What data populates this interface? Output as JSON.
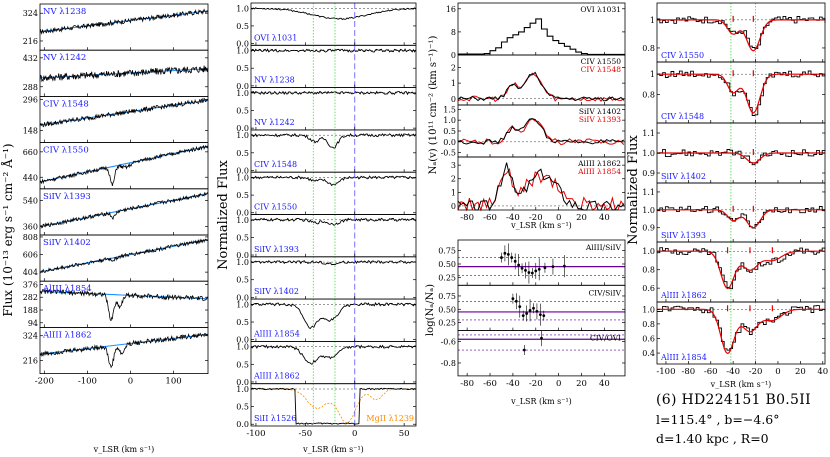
{
  "chart_data": [
    {
      "id": "flux",
      "type": "line",
      "ylabel": "Flux (10⁻¹³ erg s⁻¹ cm⁻² Å⁻¹)",
      "xlabel": "v_LSR (km s⁻¹)",
      "xlim": [
        -210,
        180
      ],
      "xticks": [
        -200,
        -100,
        0,
        100
      ],
      "panels": [
        {
          "label": "NV λ1238",
          "yticks": [
            216,
            324
          ],
          "ylim": [
            180,
            360
          ],
          "trend": [
            0.4,
            0.85
          ],
          "wid": 3,
          "amp": 0.05,
          "absorb": []
        },
        {
          "label": "NV λ1242",
          "yticks": [
            288,
            432
          ],
          "ylim": [
            240,
            470
          ],
          "trend": [
            0.4,
            0.6
          ],
          "wid": 2,
          "amp": 0.08,
          "absorb": []
        },
        {
          "label": "CIV λ1548",
          "yticks": [
            148,
            296
          ],
          "ylim": [
            90,
            310
          ],
          "trend": [
            0.38,
            0.92
          ],
          "wid": 1,
          "amp": 0.05,
          "absorb": []
        },
        {
          "label": "CIV λ1550",
          "yticks": [
            440,
            660
          ],
          "ylim": [
            340,
            740
          ],
          "trend": [
            0.15,
            0.92
          ],
          "wid": 4,
          "amp": 0.04,
          "absorb": [
            {
              "v": -42,
              "d": 0.4,
              "w": 5
            },
            {
              "v": -10,
              "d": 0.08,
              "w": 10
            }
          ]
        },
        {
          "label": "SiIV λ1393",
          "yticks": [
            360,
            540
          ],
          "ylim": [
            300,
            620
          ],
          "trend": [
            0.18,
            0.9
          ],
          "wid": 2,
          "amp": 0.04,
          "absorb": [
            {
              "v": -40,
              "d": 0.12,
              "w": 5
            }
          ]
        },
        {
          "label": "SiIV λ1402",
          "yticks": [
            404,
            606,
            808
          ],
          "ylim": [
            300,
            830
          ],
          "trend": [
            0.2,
            0.9
          ],
          "wid": 2,
          "amp": 0.04,
          "absorb": [
            {
              "v": -40,
              "d": 0.05,
              "w": 5
            }
          ]
        },
        {
          "label": "AlIII λ1854",
          "yticks": [
            94,
            188,
            282,
            376
          ],
          "ylim": [
            60,
            400
          ],
          "trend": [
            0.78,
            0.62
          ],
          "wid": 4,
          "amp": 0.05,
          "absorb": [
            {
              "v": -45,
              "d": 0.55,
              "w": 6
            },
            {
              "v": -25,
              "d": 0.25,
              "w": 6
            }
          ]
        },
        {
          "label": "AlIII λ1862",
          "yticks": [
            216,
            324
          ],
          "ylim": [
            160,
            360
          ],
          "trend": [
            0.42,
            0.85
          ],
          "wid": 4,
          "amp": 0.05,
          "absorb": [
            {
              "v": -45,
              "d": 0.45,
              "w": 6
            },
            {
              "v": -20,
              "d": 0.2,
              "w": 6
            }
          ]
        }
      ]
    },
    {
      "id": "normflux",
      "type": "line",
      "ylabel": "Normalized Flux",
      "xlabel": "v_LSR (km s⁻¹)",
      "xlim": [
        -105,
        62
      ],
      "xticks": [
        -100,
        -50,
        0,
        50
      ],
      "vlines": [
        -42,
        -20
      ],
      "panels": [
        {
          "label": "OVI λ1031",
          "yticks": [
            "0.0",
            "0.5",
            "1.0"
          ],
          "ylim": [
            -0.05,
            1.15
          ],
          "trend": [
            0.88,
            0.88
          ],
          "amp": 0.01,
          "broad": {
            "v": -15,
            "d": 0.3,
            "w": 28
          },
          "absorb": []
        },
        {
          "label": "NV λ1238",
          "yticks": [
            "0.0",
            "0.5",
            "1.0"
          ],
          "ylim": [
            -0.05,
            1.15
          ],
          "trend": [
            0.86,
            0.86
          ],
          "amp": 0.02,
          "absorb": []
        },
        {
          "label": "NV λ1242",
          "yticks": [
            "0.0",
            "0.5",
            "1.0"
          ],
          "ylim": [
            -0.05,
            1.15
          ],
          "trend": [
            0.86,
            0.86
          ],
          "amp": 0.02,
          "absorb": []
        },
        {
          "label": "CIV λ1548",
          "yticks": [
            "0.0",
            "0.5",
            "1.0"
          ],
          "ylim": [
            -0.05,
            1.15
          ],
          "trend": [
            0.86,
            0.86
          ],
          "amp": 0.02,
          "absorb": [
            {
              "v": -40,
              "d": 0.18,
              "w": 5
            },
            {
              "v": -22,
              "d": 0.35,
              "w": 5
            }
          ]
        },
        {
          "label": "CIV λ1550",
          "yticks": [
            "0.0",
            "0.5",
            "1.0"
          ],
          "ylim": [
            -0.05,
            1.15
          ],
          "trend": [
            0.86,
            0.86
          ],
          "amp": 0.02,
          "absorb": [
            {
              "v": -40,
              "d": 0.1,
              "w": 5
            },
            {
              "v": -22,
              "d": 0.2,
              "w": 6
            }
          ]
        },
        {
          "label": "SiIV λ1393",
          "yticks": [
            "0.0",
            "0.5",
            "1.0"
          ],
          "ylim": [
            -0.05,
            1.15
          ],
          "trend": [
            0.86,
            0.86
          ],
          "amp": 0.02,
          "absorb": [
            {
              "v": -40,
              "d": 0.08,
              "w": 5
            },
            {
              "v": -22,
              "d": 0.12,
              "w": 6
            }
          ]
        },
        {
          "label": "SiIV λ1402",
          "yticks": [
            "0.0",
            "0.5",
            "1.0"
          ],
          "ylim": [
            -0.05,
            1.15
          ],
          "trend": [
            0.86,
            0.86
          ],
          "amp": 0.02,
          "absorb": [
            {
              "v": -22,
              "d": 0.06,
              "w": 6
            }
          ]
        },
        {
          "label": "AlIII λ1854",
          "yticks": [
            "0.0",
            "0.5",
            "1.0"
          ],
          "ylim": [
            -0.05,
            1.15
          ],
          "trend": [
            0.86,
            0.86
          ],
          "amp": 0.02,
          "absorb": [
            {
              "v": -45,
              "d": 0.65,
              "w": 7
            },
            {
              "v": -25,
              "d": 0.45,
              "w": 8
            }
          ]
        },
        {
          "label": "AlIII λ1862",
          "yticks": [
            "0.0",
            "0.5",
            "1.0"
          ],
          "ylim": [
            -0.05,
            1.15
          ],
          "trend": [
            0.86,
            0.86
          ],
          "amp": 0.02,
          "absorb": [
            {
              "v": -45,
              "d": 0.45,
              "w": 7
            },
            {
              "v": -25,
              "d": 0.3,
              "w": 8
            }
          ]
        },
        {
          "label": "SiII λ1526",
          "label2": "MgII λ1239",
          "yticks": [
            "0.0",
            "0.5",
            "1.0"
          ],
          "ylim": [
            -0.05,
            1.15
          ],
          "trend": [
            0.93,
            0.93
          ],
          "amp": 0.01,
          "saturated": [
            -60,
            5
          ],
          "orange": true,
          "absorb": []
        }
      ]
    },
    {
      "id": "column_density",
      "type": "line",
      "ylabel": "Nₐ(v) (10¹¹ cm⁻² (km s⁻¹)⁻¹)",
      "xlabel": "v_LSR (km s⁻¹)",
      "xlim": [
        -88,
        58
      ],
      "xticks": [
        -80,
        -60,
        -40,
        -20,
        0,
        20,
        40
      ],
      "panels": [
        {
          "legend": [
            "OVI λ1031"
          ],
          "yticks": [
            "0",
            "8",
            "16"
          ],
          "ylim": [
            0,
            18
          ],
          "steps": [
            {
              "x": -65,
              "y": 0.5
            },
            {
              "x": -60,
              "y": 1.5
            },
            {
              "x": -55,
              "y": 2.5
            },
            {
              "x": -50,
              "y": 4.5
            },
            {
              "x": -45,
              "y": 6
            },
            {
              "x": -40,
              "y": 7
            },
            {
              "x": -35,
              "y": 8
            },
            {
              "x": -30,
              "y": 9.5
            },
            {
              "x": -25,
              "y": 11
            },
            {
              "x": -20,
              "y": 12.5
            },
            {
              "x": -15,
              "y": 9
            },
            {
              "x": -10,
              "y": 6.5
            },
            {
              "x": -5,
              "y": 5
            },
            {
              "x": 0,
              "y": 4
            },
            {
              "x": 5,
              "y": 3
            },
            {
              "x": 10,
              "y": 2
            },
            {
              "x": 15,
              "y": 1
            },
            {
              "x": 20,
              "y": 0.5
            },
            {
              "x": 25,
              "y": 0.2
            }
          ]
        },
        {
          "legend": [
            "CIV λ1550",
            "CIV λ1548"
          ],
          "yticks": [
            "0",
            "1",
            "2"
          ],
          "ylim": [
            -0.4,
            2.8
          ],
          "peaks": [
            {
              "v": -40,
              "h": 0.8,
              "w": 5
            },
            {
              "v": -22,
              "h": 1.6,
              "w": 7
            }
          ]
        },
        {
          "legend": [
            "SiIV λ1402",
            "SiIV λ1393"
          ],
          "yticks": [
            "-0.5",
            "0.0",
            "0.5",
            "1.0",
            "1.5"
          ],
          "ylim": [
            -0.7,
            1.7
          ],
          "peaks": [
            {
              "v": -40,
              "h": 0.6,
              "w": 5
            },
            {
              "v": -22,
              "h": 1.1,
              "w": 7
            }
          ]
        },
        {
          "legend": [
            "AlIII λ1862",
            "AlIII λ1854"
          ],
          "yticks": [
            "0",
            "1",
            "2",
            "3"
          ],
          "ylim": [
            -0.3,
            3.6
          ],
          "peaks": [
            {
              "v": -46,
              "h": 2.7,
              "w": 5
            },
            {
              "v": -20,
              "h": 1.8,
              "w": 10
            },
            {
              "v": -5,
              "h": 1.2,
              "w": 9
            }
          ]
        }
      ]
    },
    {
      "id": "ratios",
      "type": "scatter",
      "ylabel": "log(Nₐ/Nₐ)",
      "xlabel": "v_LSR (km s⁻¹)",
      "xlim": [
        -88,
        58
      ],
      "xticks": [
        -80,
        -60,
        -40,
        -20,
        0,
        20,
        40
      ],
      "panels": [
        {
          "label": "AlIII/SiIV",
          "yticks": [
            "0.25",
            "0.50",
            "0.75"
          ],
          "ylim": [
            0.1,
            0.95
          ],
          "hline": 0.45,
          "dotted": [
            0.28,
            0.62
          ],
          "points": [
            {
              "x": -50,
              "y": 0.62
            },
            {
              "x": -47,
              "y": 0.7
            },
            {
              "x": -44,
              "y": 0.68
            },
            {
              "x": -41,
              "y": 0.62
            },
            {
              "x": -38,
              "y": 0.55
            },
            {
              "x": -35,
              "y": 0.48
            },
            {
              "x": -32,
              "y": 0.42
            },
            {
              "x": -29,
              "y": 0.38
            },
            {
              "x": -26,
              "y": 0.34
            },
            {
              "x": -23,
              "y": 0.33
            },
            {
              "x": -20,
              "y": 0.37
            },
            {
              "x": -17,
              "y": 0.4
            },
            {
              "x": -12,
              "y": 0.43
            },
            {
              "x": -5,
              "y": 0.45
            },
            {
              "x": 5,
              "y": 0.46
            }
          ]
        },
        {
          "label": "CIV/SiIV",
          "yticks": [
            "0.25",
            "0.50",
            "0.75"
          ],
          "ylim": [
            0.1,
            0.95
          ],
          "hline": 0.45,
          "dotted": [
            0.3,
            0.65
          ],
          "points": [
            {
              "x": -40,
              "y": 0.7
            },
            {
              "x": -37,
              "y": 0.65
            },
            {
              "x": -34,
              "y": 0.55
            },
            {
              "x": -31,
              "y": 0.38
            },
            {
              "x": -28,
              "y": 0.42
            },
            {
              "x": -25,
              "y": 0.48
            },
            {
              "x": -22,
              "y": 0.52
            },
            {
              "x": -19,
              "y": 0.46
            },
            {
              "x": -16,
              "y": 0.4
            },
            {
              "x": -13,
              "y": 0.38
            }
          ]
        },
        {
          "label": "CIV/OVI",
          "yticks": [
            "-0.8",
            "-0.6"
          ],
          "ylim": [
            -0.92,
            -0.5
          ],
          "hline": -0.58,
          "dotted": [
            -0.68,
            -0.54
          ],
          "points": [
            {
              "x": -30,
              "y": -0.68
            },
            {
              "x": -15,
              "y": -0.57
            }
          ]
        }
      ]
    },
    {
      "id": "fits",
      "type": "line",
      "ylabel": "Normalized Flux",
      "xlabel": "v_LSR (km s⁻¹)",
      "xlim": [
        -108,
        42
      ],
      "xticks": [
        -100,
        -80,
        -60,
        -40,
        -20,
        0,
        20,
        40
      ],
      "vlines": [
        -42,
        -20
      ],
      "panels": [
        {
          "label": "CIV λ1550",
          "yticks": [
            "0.8",
            "1"
          ],
          "ylim": [
            0.7,
            1.12
          ],
          "lines": [
            {
              "v": -40,
              "d": 0.1,
              "w": 5
            },
            {
              "v": -22,
              "d": 0.22,
              "w": 6
            }
          ]
        },
        {
          "label": "CIV λ1548",
          "yticks": [
            "0.8",
            "1"
          ],
          "ylim": [
            0.52,
            1.12
          ],
          "lines": [
            {
              "v": -40,
              "d": 0.18,
              "w": 5
            },
            {
              "v": -22,
              "d": 0.38,
              "w": 6
            }
          ]
        },
        {
          "label": "SiIV λ1402",
          "yticks": [
            "0.9",
            "1.0",
            "1.1"
          ],
          "ylim": [
            0.85,
            1.15
          ],
          "lines": [
            {
              "v": -22,
              "d": 0.05,
              "w": 6
            }
          ]
        },
        {
          "label": "SiIV λ1393",
          "yticks": [
            "0.9",
            "1.0",
            "1.1"
          ],
          "ylim": [
            0.82,
            1.15
          ],
          "lines": [
            {
              "v": -40,
              "d": 0.06,
              "w": 5
            },
            {
              "v": -22,
              "d": 0.1,
              "w": 6
            }
          ]
        },
        {
          "label": "AlIII λ1862",
          "yticks": [
            "0.6",
            "0.8",
            "1.0"
          ],
          "ylim": [
            0.45,
            1.1
          ],
          "lines": [
            {
              "v": -45,
              "d": 0.4,
              "w": 6
            },
            {
              "v": -25,
              "d": 0.2,
              "w": 7
            },
            {
              "v": -5,
              "d": 0.1,
              "w": 8
            }
          ]
        },
        {
          "label": "AlIII λ1854",
          "yticks": [
            "0.4",
            "0.6",
            "0.8",
            "1.0"
          ],
          "ylim": [
            0.25,
            1.1
          ],
          "lines": [
            {
              "v": -45,
              "d": 0.6,
              "w": 6
            },
            {
              "v": -25,
              "d": 0.3,
              "w": 7
            },
            {
              "v": -5,
              "d": 0.15,
              "w": 8
            }
          ]
        }
      ]
    }
  ],
  "star_info": {
    "title": "(6)  HD224151  B0.5II",
    "coords": "l=115.4° , b=−4.6°",
    "distance": "d=1.40 kpc , R=0"
  },
  "colors": {
    "label_blue": "#1a1aff",
    "continuum": "#1e90ff",
    "fit_red": "#e60000",
    "vline_green": "#33cc33",
    "vline_dash": "#6666ff",
    "hline_purple": "#660099",
    "orange": "#ff8c00"
  }
}
